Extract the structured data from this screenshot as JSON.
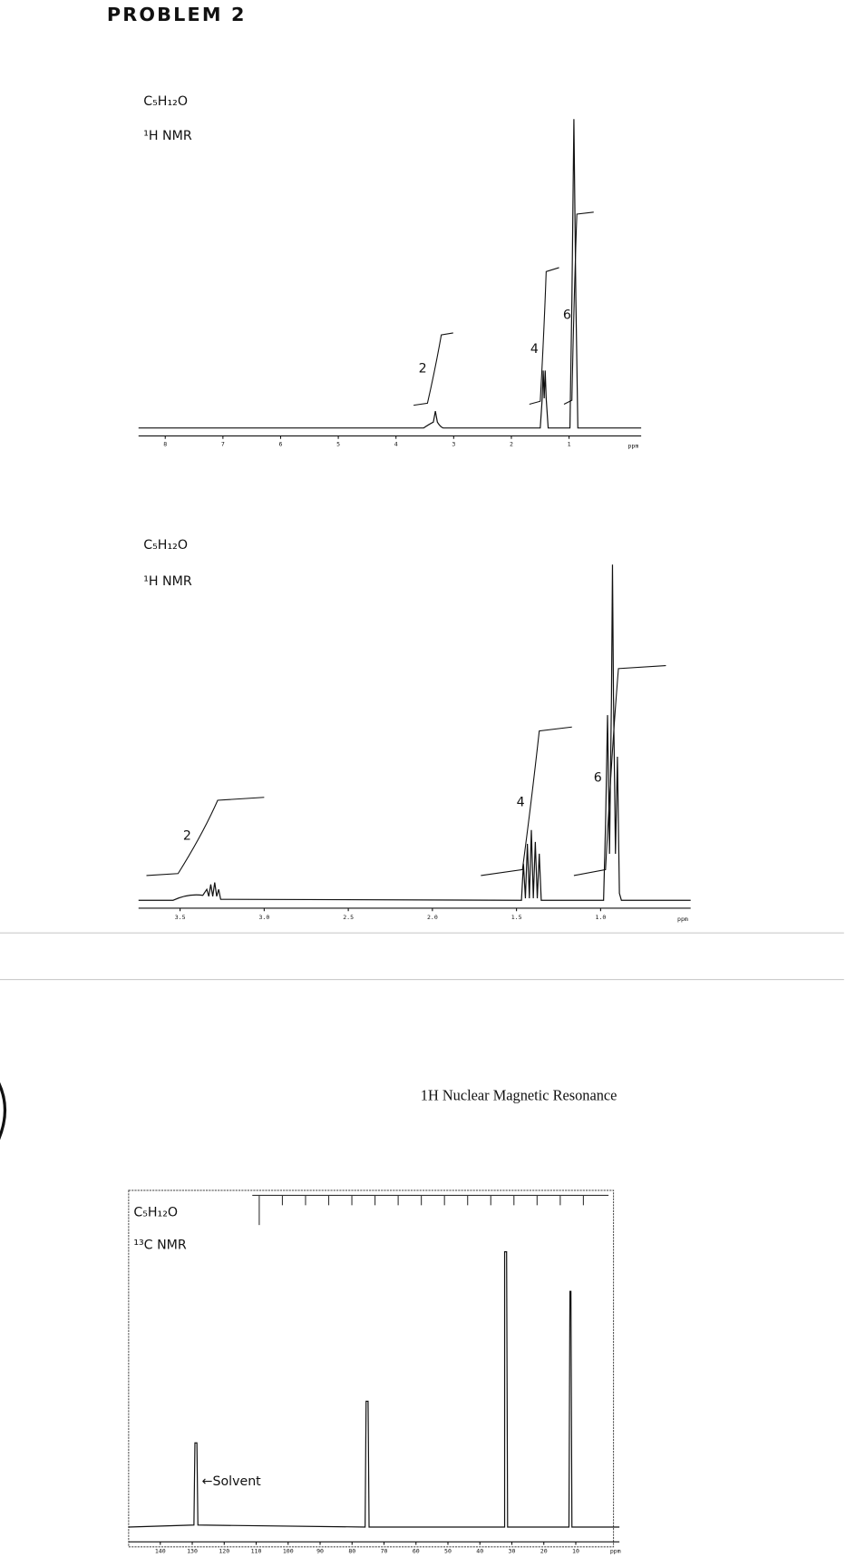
{
  "title": "PROBLEM 2",
  "spectra": [
    {
      "formula": "C₅H₁₂O",
      "nucleus": "¹H NMR",
      "integrations": [
        2,
        4,
        6
      ],
      "axis_labels": [
        "8",
        "7",
        "6",
        "5",
        "4",
        "3",
        "2",
        "1"
      ],
      "axis_unit": "ppm"
    },
    {
      "formula": "C₅H₁₂O",
      "nucleus": "¹H NMR",
      "integrations": [
        2,
        4,
        6
      ],
      "axis_labels": [
        "3.5",
        "3.0",
        "2.5",
        "2.0",
        "1.5",
        "1.0"
      ],
      "axis_unit": "ppm"
    },
    {
      "formula": "C₅H₁₂O",
      "nucleus": "¹³C NMR",
      "annotation": "←Solvent",
      "axis_labels": [
        "140",
        "130",
        "120",
        "110",
        "100",
        "90",
        "80",
        "70",
        "60",
        "50",
        "40",
        "30",
        "20",
        "10"
      ],
      "axis_unit": "ppm"
    }
  ],
  "heading": "1H Nuclear Magnetic Resonance"
}
